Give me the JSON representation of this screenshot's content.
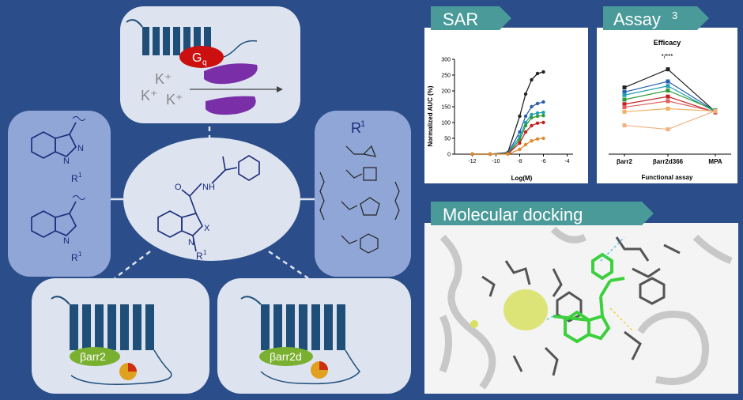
{
  "left_panel": {
    "gq_label": "G",
    "gq_sub": "q",
    "ions": [
      "K⁺",
      "K⁺",
      "K⁺"
    ],
    "r1_title": "R",
    "r1_sup": "1",
    "scaffold_x": "X",
    "scaffold_nh": "NH",
    "scaffold_o": "O",
    "scaffold_n": "N",
    "scaffold_r": "R",
    "scaffold_r_sup": "1",
    "indazole_n1": "N",
    "indazole_n2": "N",
    "indazole_r": "R",
    "indazole_r_sup": "1",
    "indole_n": "N",
    "indole_r": "R",
    "indole_r_sup": "1",
    "barr2_label": "βarr2",
    "barr2d_label": "βarr2d"
  },
  "tags": {
    "sar": "SAR",
    "assay": "Assay",
    "assay_sup": "3",
    "docking": "Molecular docking"
  },
  "colors": {
    "background": "#2b4d8a",
    "panel_light": "#dde4f0",
    "panel_mid": "#8fa6d6",
    "receptor": "#1f4e79",
    "gq": "#cc1010",
    "gprotein": "#7a2fa8",
    "barr": "#7ab030",
    "tag": "#4a9a9a"
  },
  "chart_data": [
    {
      "type": "line",
      "xlabel": "Log(M)",
      "ylabel": "Normalized AUC (%)",
      "xlim": [
        -13.5,
        -3.5
      ],
      "ylim": [
        0,
        300
      ],
      "xticks": [
        -12,
        -10,
        -8,
        -6,
        -4
      ],
      "yticks": [
        0,
        50,
        100,
        150,
        200,
        250,
        300
      ],
      "x": [
        -12,
        -10.5,
        -9,
        -8,
        -7.5,
        -7,
        -6.5,
        -6
      ],
      "series": [
        {
          "color": "#222222",
          "values": [
            0,
            0,
            5,
            120,
            190,
            235,
            255,
            260
          ]
        },
        {
          "color": "#2a5fb0",
          "values": [
            0,
            0,
            3,
            70,
            120,
            150,
            160,
            165
          ]
        },
        {
          "color": "#1fa0b0",
          "values": [
            0,
            0,
            2,
            55,
            100,
            125,
            130,
            132
          ]
        },
        {
          "color": "#2f9a3a",
          "values": [
            0,
            0,
            2,
            45,
            90,
            115,
            120,
            122
          ]
        },
        {
          "color": "#c52020",
          "values": [
            0,
            0,
            1,
            35,
            70,
            90,
            98,
            100
          ]
        },
        {
          "color": "#e08a30",
          "values": [
            0,
            0,
            0,
            15,
            30,
            42,
            48,
            50
          ]
        }
      ]
    },
    {
      "type": "line",
      "title": "Efficacy",
      "annotation": "*/***",
      "xlabel": "Functional assay",
      "categories": [
        "βarr2",
        "βarr2d366",
        "MPA"
      ],
      "ylim": [
        0,
        300
      ],
      "series": [
        {
          "color": "#222222",
          "values": [
            220,
            280,
            140
          ]
        },
        {
          "color": "#2a5fb0",
          "values": [
            205,
            240,
            142
          ]
        },
        {
          "color": "#1fa0b0",
          "values": [
            195,
            225,
            140
          ]
        },
        {
          "color": "#2f9a3a",
          "values": [
            180,
            210,
            145
          ]
        },
        {
          "color": "#c52020",
          "values": [
            165,
            190,
            138
          ]
        },
        {
          "color": "#e06060",
          "values": [
            155,
            175,
            140
          ]
        },
        {
          "color": "#f0b060",
          "values": [
            140,
            150,
            142
          ]
        },
        {
          "color": "#f0b080",
          "values": [
            95,
            82,
            143
          ]
        }
      ]
    }
  ]
}
